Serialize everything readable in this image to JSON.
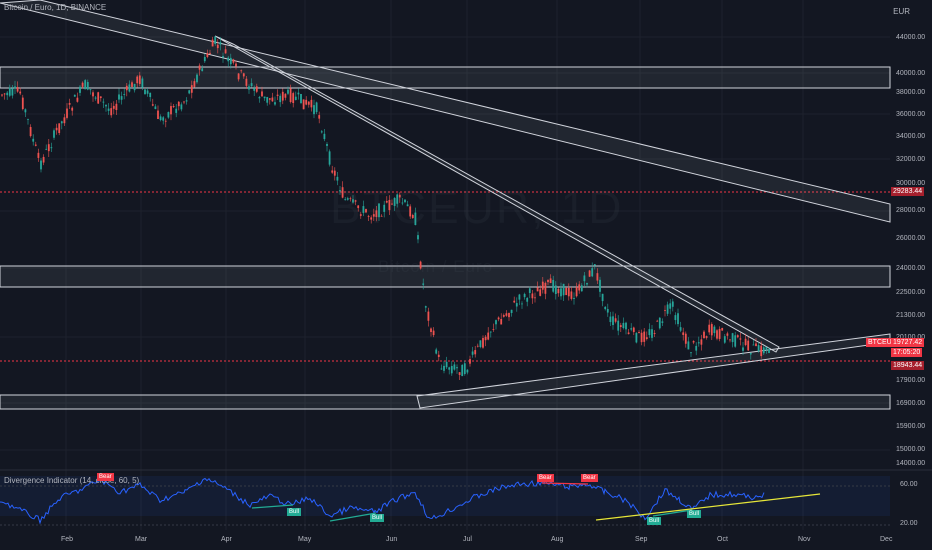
{
  "header": {
    "symbol": "Bitcoin / Euro, 1D, BINANCE"
  },
  "watermark": {
    "ticker": "BTCEUR, 1D",
    "name": "Bitcoin / Euro"
  },
  "axis": {
    "currency": "EUR",
    "y_ticks": [
      "44000.00",
      "40000.00",
      "38000.00",
      "36000.00",
      "34000.00",
      "32000.00",
      "30000.00",
      "28000.00",
      "26000.00",
      "24000.00",
      "22500.00",
      "21300.00",
      "20100.00",
      "17900.00",
      "16900.00",
      "15900.00",
      "15000.00",
      "14000.00"
    ],
    "x_ticks": [
      "Feb",
      "Mar",
      "Apr",
      "May",
      "Jun",
      "Jul",
      "Aug",
      "Sep",
      "Oct",
      "Nov",
      "Dec"
    ]
  },
  "price_labels": {
    "resistance_level": "29283.44",
    "symbol": "BTCEUR",
    "last_price": "19727.42",
    "countdown": "17:05:20",
    "support_level": "18943.44"
  },
  "indicator": {
    "title": "Divergence Indicator (14, close, 60, 5)",
    "levels": [
      "60.00",
      "20.00"
    ],
    "signals": {
      "bear": "Bear",
      "bull": "Bull"
    }
  },
  "colors": {
    "background": "#131722",
    "up": "#26a69a",
    "down": "#ef5350",
    "rsi": "#2962ff",
    "bull_line": "#22ab94",
    "trend_line": "#e6e639",
    "bear_line": "#f23645",
    "zone_border": "#d1d4dc",
    "dotted_red": "#f23645"
  }
}
